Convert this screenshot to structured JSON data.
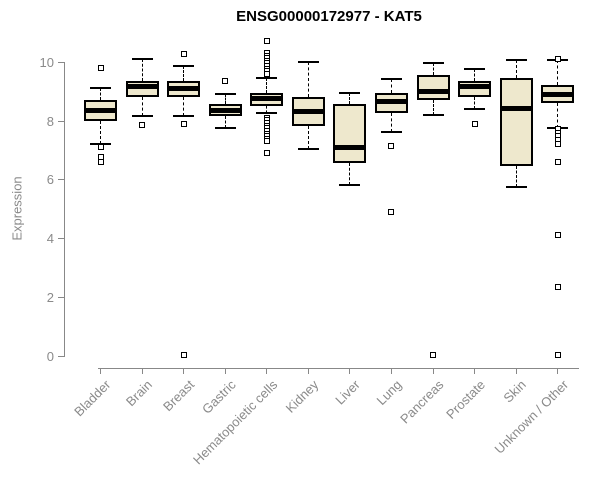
{
  "chart_data": {
    "type": "boxplot",
    "title": "ENSG00000172977 - KAT5",
    "ylabel": "Expression",
    "xlabel": "",
    "ylim": [
      0,
      10
    ],
    "yticks": [
      0,
      2,
      4,
      6,
      8,
      10
    ],
    "grid": false,
    "legend": false,
    "categories": [
      "Bladder",
      "Brain",
      "Breast",
      "Gastric",
      "Hematopoietic cells",
      "Kidney",
      "Liver",
      "Lung",
      "Pancreas",
      "Prostate",
      "Skin",
      "Unknown / Other"
    ],
    "series": [
      {
        "label": "Bladder",
        "whisker_low": 7.2,
        "q1": 8.0,
        "median": 8.35,
        "q3": 8.7,
        "whisker_high": 9.1,
        "outliers": [
          9.8,
          7.1,
          6.75,
          6.6
        ]
      },
      {
        "label": "Brain",
        "whisker_low": 8.15,
        "q1": 8.8,
        "median": 9.15,
        "q3": 9.35,
        "whisker_high": 10.1,
        "outliers": [
          7.85
        ]
      },
      {
        "label": "Breast",
        "whisker_low": 8.15,
        "q1": 8.8,
        "median": 9.1,
        "q3": 9.35,
        "whisker_high": 9.85,
        "outliers": [
          10.25,
          7.9,
          0.05
        ]
      },
      {
        "label": "Gastric",
        "whisker_low": 7.75,
        "q1": 8.15,
        "median": 8.35,
        "q3": 8.55,
        "whisker_high": 8.9,
        "outliers": [
          9.35
        ]
      },
      {
        "label": "Hematopoietic cells",
        "whisker_low": 8.25,
        "q1": 8.5,
        "median": 8.75,
        "q3": 8.95,
        "whisker_high": 9.45,
        "outliers": [
          10.7,
          10.3,
          10.21,
          10.12,
          10.03,
          9.94,
          9.85,
          9.76,
          9.67,
          9.58,
          8.1,
          8.01,
          7.92,
          7.83,
          7.74,
          7.65,
          7.56,
          7.47,
          7.38,
          7.29,
          6.9
        ]
      },
      {
        "label": "Kidney",
        "whisker_low": 7.05,
        "q1": 7.8,
        "median": 8.3,
        "q3": 8.8,
        "whisker_high": 10.0,
        "outliers": []
      },
      {
        "label": "Liver",
        "whisker_low": 5.8,
        "q1": 6.55,
        "median": 7.1,
        "q3": 8.55,
        "whisker_high": 8.95,
        "outliers": []
      },
      {
        "label": "Lung",
        "whisker_low": 7.6,
        "q1": 8.25,
        "median": 8.65,
        "q3": 8.95,
        "whisker_high": 9.4,
        "outliers": [
          7.15,
          4.9
        ]
      },
      {
        "label": "Pancreas",
        "whisker_low": 8.2,
        "q1": 8.7,
        "median": 9.0,
        "q3": 9.55,
        "whisker_high": 9.95,
        "outliers": [
          0.05
        ]
      },
      {
        "label": "Prostate",
        "whisker_low": 8.4,
        "q1": 8.8,
        "median": 9.15,
        "q3": 9.35,
        "whisker_high": 9.75,
        "outliers": [
          7.9
        ]
      },
      {
        "label": "Skin",
        "whisker_low": 5.75,
        "q1": 6.45,
        "median": 8.4,
        "q3": 9.45,
        "whisker_high": 10.05,
        "outliers": []
      },
      {
        "label": "Unknown / Other",
        "whisker_low": 7.75,
        "q1": 8.6,
        "median": 8.9,
        "q3": 9.2,
        "whisker_high": 10.05,
        "outliers": [
          10.1,
          7.7,
          7.58,
          7.46,
          7.34,
          7.22,
          6.6,
          4.1,
          2.35,
          0.05
        ]
      }
    ],
    "colors": {
      "box_fill": "#EEE8CD",
      "box_border": "#000000",
      "median": "#000000",
      "axis": "#888888",
      "tick_label": "#8A8A8A",
      "title": "#000000"
    }
  }
}
